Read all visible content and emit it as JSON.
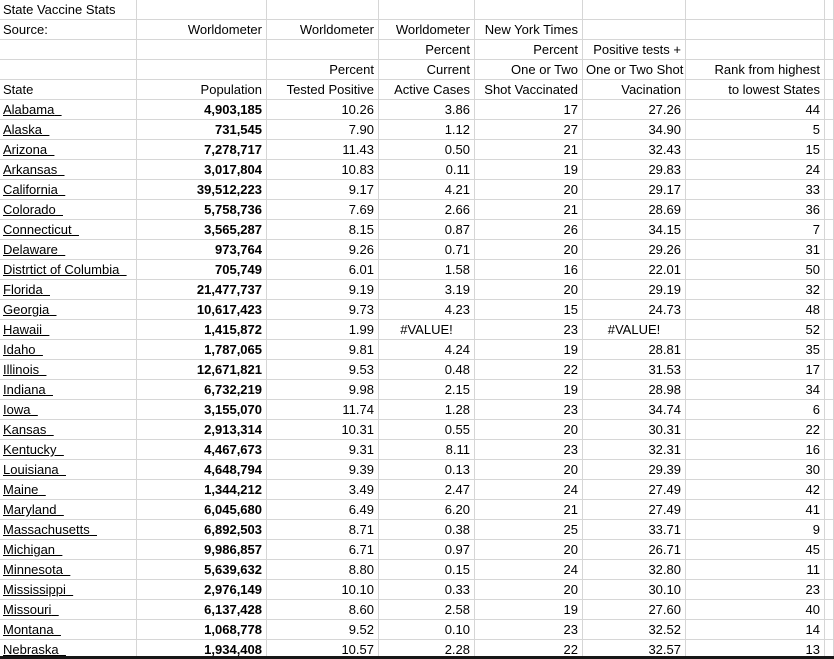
{
  "document_title": "State Vaccine Stats",
  "sheet": {
    "header_rows": [
      [
        "State Vaccine Stats",
        "",
        "",
        "",
        "",
        "",
        ""
      ],
      [
        "Source:",
        "Worldometer",
        "Worldometer",
        "Worldometer",
        "New York Times",
        "",
        ""
      ],
      [
        "",
        "",
        "",
        "Percent",
        "Percent",
        "Positive tests +",
        ""
      ],
      [
        "",
        "",
        "Percent",
        "Current",
        "One or Two",
        "One or Two Shot",
        "Rank from highest"
      ],
      [
        "State",
        "Population",
        "Tested Positive",
        "Active Cases",
        "Shot Vaccinated",
        "Vacination",
        "to lowest States"
      ]
    ],
    "column_names": [
      "State",
      "Population",
      "Percent Tested Positive",
      "Percent Current Active Cases",
      "Percent One or Two Shot Vaccinated",
      "Positive tests + One or Two Shot Vacination",
      "Rank from highest to lowest States"
    ],
    "error_value": "#VALUE!",
    "rows": [
      {
        "state": "Alabama",
        "population": "4,903,185",
        "pct_tested_positive": "10.26",
        "pct_active_cases": "3.86",
        "pct_vaccinated": "17",
        "positive_plus_vaccinated": "27.26",
        "rank": "44"
      },
      {
        "state": "Alaska",
        "population": "731,545",
        "pct_tested_positive": "7.90",
        "pct_active_cases": "1.12",
        "pct_vaccinated": "27",
        "positive_plus_vaccinated": "34.90",
        "rank": "5"
      },
      {
        "state": "Arizona",
        "population": "7,278,717",
        "pct_tested_positive": "11.43",
        "pct_active_cases": "0.50",
        "pct_vaccinated": "21",
        "positive_plus_vaccinated": "32.43",
        "rank": "15"
      },
      {
        "state": "Arkansas",
        "population": "3,017,804",
        "pct_tested_positive": "10.83",
        "pct_active_cases": "0.11",
        "pct_vaccinated": "19",
        "positive_plus_vaccinated": "29.83",
        "rank": "24"
      },
      {
        "state": "California",
        "population": "39,512,223",
        "pct_tested_positive": "9.17",
        "pct_active_cases": "4.21",
        "pct_vaccinated": "20",
        "positive_plus_vaccinated": "29.17",
        "rank": "33"
      },
      {
        "state": "Colorado",
        "population": "5,758,736",
        "pct_tested_positive": "7.69",
        "pct_active_cases": "2.66",
        "pct_vaccinated": "21",
        "positive_plus_vaccinated": "28.69",
        "rank": "36"
      },
      {
        "state": "Connecticut",
        "population": "3,565,287",
        "pct_tested_positive": "8.15",
        "pct_active_cases": "0.87",
        "pct_vaccinated": "26",
        "positive_plus_vaccinated": "34.15",
        "rank": "7"
      },
      {
        "state": "Delaware",
        "population": "973,764",
        "pct_tested_positive": "9.26",
        "pct_active_cases": "0.71",
        "pct_vaccinated": "20",
        "positive_plus_vaccinated": "29.26",
        "rank": "31"
      },
      {
        "state": "Distrtict of Columbia",
        "population": "705,749",
        "pct_tested_positive": "6.01",
        "pct_active_cases": "1.58",
        "pct_vaccinated": "16",
        "positive_plus_vaccinated": "22.01",
        "rank": "50"
      },
      {
        "state": "Florida",
        "population": "21,477,737",
        "pct_tested_positive": "9.19",
        "pct_active_cases": "3.19",
        "pct_vaccinated": "20",
        "positive_plus_vaccinated": "29.19",
        "rank": "32"
      },
      {
        "state": "Georgia",
        "population": "10,617,423",
        "pct_tested_positive": "9.73",
        "pct_active_cases": "4.23",
        "pct_vaccinated": "15",
        "positive_plus_vaccinated": "24.73",
        "rank": "48"
      },
      {
        "state": "Hawaii",
        "population": "1,415,872",
        "pct_tested_positive": "1.99",
        "pct_active_cases": "#VALUE!",
        "pct_vaccinated": "23",
        "positive_plus_vaccinated": "#VALUE!",
        "rank": "52"
      },
      {
        "state": "Idaho",
        "population": "1,787,065",
        "pct_tested_positive": "9.81",
        "pct_active_cases": "4.24",
        "pct_vaccinated": "19",
        "positive_plus_vaccinated": "28.81",
        "rank": "35"
      },
      {
        "state": "Illinois",
        "population": "12,671,821",
        "pct_tested_positive": "9.53",
        "pct_active_cases": "0.48",
        "pct_vaccinated": "22",
        "positive_plus_vaccinated": "31.53",
        "rank": "17"
      },
      {
        "state": "Indiana",
        "population": "6,732,219",
        "pct_tested_positive": "9.98",
        "pct_active_cases": "2.15",
        "pct_vaccinated": "19",
        "positive_plus_vaccinated": "28.98",
        "rank": "34"
      },
      {
        "state": "Iowa",
        "population": "3,155,070",
        "pct_tested_positive": "11.74",
        "pct_active_cases": "1.28",
        "pct_vaccinated": "23",
        "positive_plus_vaccinated": "34.74",
        "rank": "6"
      },
      {
        "state": "Kansas",
        "population": "2,913,314",
        "pct_tested_positive": "10.31",
        "pct_active_cases": "0.55",
        "pct_vaccinated": "20",
        "positive_plus_vaccinated": "30.31",
        "rank": "22"
      },
      {
        "state": "Kentucky",
        "population": "4,467,673",
        "pct_tested_positive": "9.31",
        "pct_active_cases": "8.11",
        "pct_vaccinated": "23",
        "positive_plus_vaccinated": "32.31",
        "rank": "16"
      },
      {
        "state": "Louisiana",
        "population": "4,648,794",
        "pct_tested_positive": "9.39",
        "pct_active_cases": "0.13",
        "pct_vaccinated": "20",
        "positive_plus_vaccinated": "29.39",
        "rank": "30"
      },
      {
        "state": "Maine",
        "population": "1,344,212",
        "pct_tested_positive": "3.49",
        "pct_active_cases": "2.47",
        "pct_vaccinated": "24",
        "positive_plus_vaccinated": "27.49",
        "rank": "42"
      },
      {
        "state": "Maryland",
        "population": "6,045,680",
        "pct_tested_positive": "6.49",
        "pct_active_cases": "6.20",
        "pct_vaccinated": "21",
        "positive_plus_vaccinated": "27.49",
        "rank": "41"
      },
      {
        "state": "Massachusetts",
        "population": "6,892,503",
        "pct_tested_positive": "8.71",
        "pct_active_cases": "0.38",
        "pct_vaccinated": "25",
        "positive_plus_vaccinated": "33.71",
        "rank": "9"
      },
      {
        "state": "Michigan",
        "population": "9,986,857",
        "pct_tested_positive": "6.71",
        "pct_active_cases": "0.97",
        "pct_vaccinated": "20",
        "positive_plus_vaccinated": "26.71",
        "rank": "45"
      },
      {
        "state": "Minnesota",
        "population": "5,639,632",
        "pct_tested_positive": "8.80",
        "pct_active_cases": "0.15",
        "pct_vaccinated": "24",
        "positive_plus_vaccinated": "32.80",
        "rank": "11"
      },
      {
        "state": "Mississippi",
        "population": "2,976,149",
        "pct_tested_positive": "10.10",
        "pct_active_cases": "0.33",
        "pct_vaccinated": "20",
        "positive_plus_vaccinated": "30.10",
        "rank": "23"
      },
      {
        "state": "Missouri",
        "population": "6,137,428",
        "pct_tested_positive": "8.60",
        "pct_active_cases": "2.58",
        "pct_vaccinated": "19",
        "positive_plus_vaccinated": "27.60",
        "rank": "40"
      },
      {
        "state": "Montana",
        "population": "1,068,778",
        "pct_tested_positive": "9.52",
        "pct_active_cases": "0.10",
        "pct_vaccinated": "23",
        "positive_plus_vaccinated": "32.52",
        "rank": "14"
      },
      {
        "state": "Nebraska",
        "population": "1,934,408",
        "pct_tested_positive": "10.57",
        "pct_active_cases": "2.28",
        "pct_vaccinated": "22",
        "positive_plus_vaccinated": "32.57",
        "rank": "13"
      }
    ],
    "colors": {
      "gridline": "#d6d6d6",
      "text": "#000000",
      "background": "#ffffff",
      "cutoff_bar": "#171717"
    }
  }
}
